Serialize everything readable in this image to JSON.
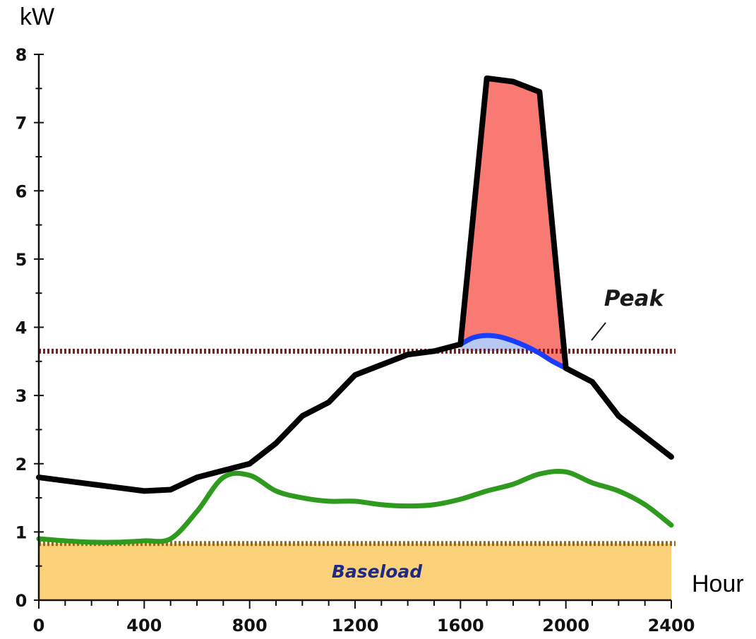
{
  "chart_data": {
    "type": "line",
    "title": "",
    "xlabel": "Hour",
    "ylabel": "kW",
    "xlim": [
      0,
      2400
    ],
    "ylim": [
      0,
      8
    ],
    "x_ticks": [
      "0",
      "400",
      "800",
      "1200",
      "1600",
      "2000",
      "2400"
    ],
    "y_ticks": [
      "0",
      "1",
      "2",
      "3",
      "4",
      "5",
      "6",
      "7",
      "8"
    ],
    "grid": false,
    "legend": "none",
    "series": [
      {
        "role": "total-load",
        "color": "#000000",
        "x": [
          0,
          100,
          200,
          300,
          400,
          500,
          600,
          700,
          800,
          900,
          1000,
          1100,
          1200,
          1300,
          1400,
          1500,
          1600,
          1700,
          1800,
          1900,
          2000,
          2100,
          2200,
          2300,
          2400
        ],
        "y": [
          1.8,
          1.75,
          1.7,
          1.65,
          1.6,
          1.62,
          1.8,
          1.9,
          2.0,
          2.3,
          2.7,
          2.9,
          3.3,
          3.45,
          3.6,
          3.65,
          3.75,
          7.65,
          7.6,
          7.45,
          3.4,
          3.2,
          2.7,
          2.4,
          2.1
        ]
      },
      {
        "role": "managed-load",
        "color": "#1a3cff",
        "x": [
          1600,
          1650,
          1700,
          1750,
          1800,
          1850,
          1900,
          1950,
          2000
        ],
        "y": [
          3.75,
          3.85,
          3.88,
          3.86,
          3.8,
          3.72,
          3.62,
          3.5,
          3.4
        ]
      },
      {
        "role": "baseline-load",
        "color": "#2e9a1e",
        "x": [
          0,
          100,
          200,
          300,
          400,
          500,
          600,
          700,
          800,
          900,
          1000,
          1100,
          1200,
          1300,
          1400,
          1500,
          1600,
          1700,
          1800,
          1900,
          2000,
          2100,
          2200,
          2300,
          2400
        ],
        "y": [
          0.9,
          0.87,
          0.85,
          0.85,
          0.87,
          0.9,
          1.3,
          1.8,
          1.83,
          1.6,
          1.5,
          1.45,
          1.45,
          1.4,
          1.38,
          1.4,
          1.48,
          1.6,
          1.7,
          1.85,
          1.88,
          1.72,
          1.6,
          1.4,
          1.1
        ]
      }
    ],
    "peak_region": {
      "color": "#f87a72",
      "x_range": [
        1600,
        2000
      ]
    },
    "reference_lines": [
      {
        "label": "Peak",
        "y": 3.65,
        "color": "#8b1a12",
        "style": "dotted"
      },
      {
        "label": "Baseload",
        "y": 0.83,
        "color": "#9a6a1a",
        "style": "dotted",
        "fill": "#fbd27a",
        "label_color": "#1e2a8a"
      }
    ]
  }
}
